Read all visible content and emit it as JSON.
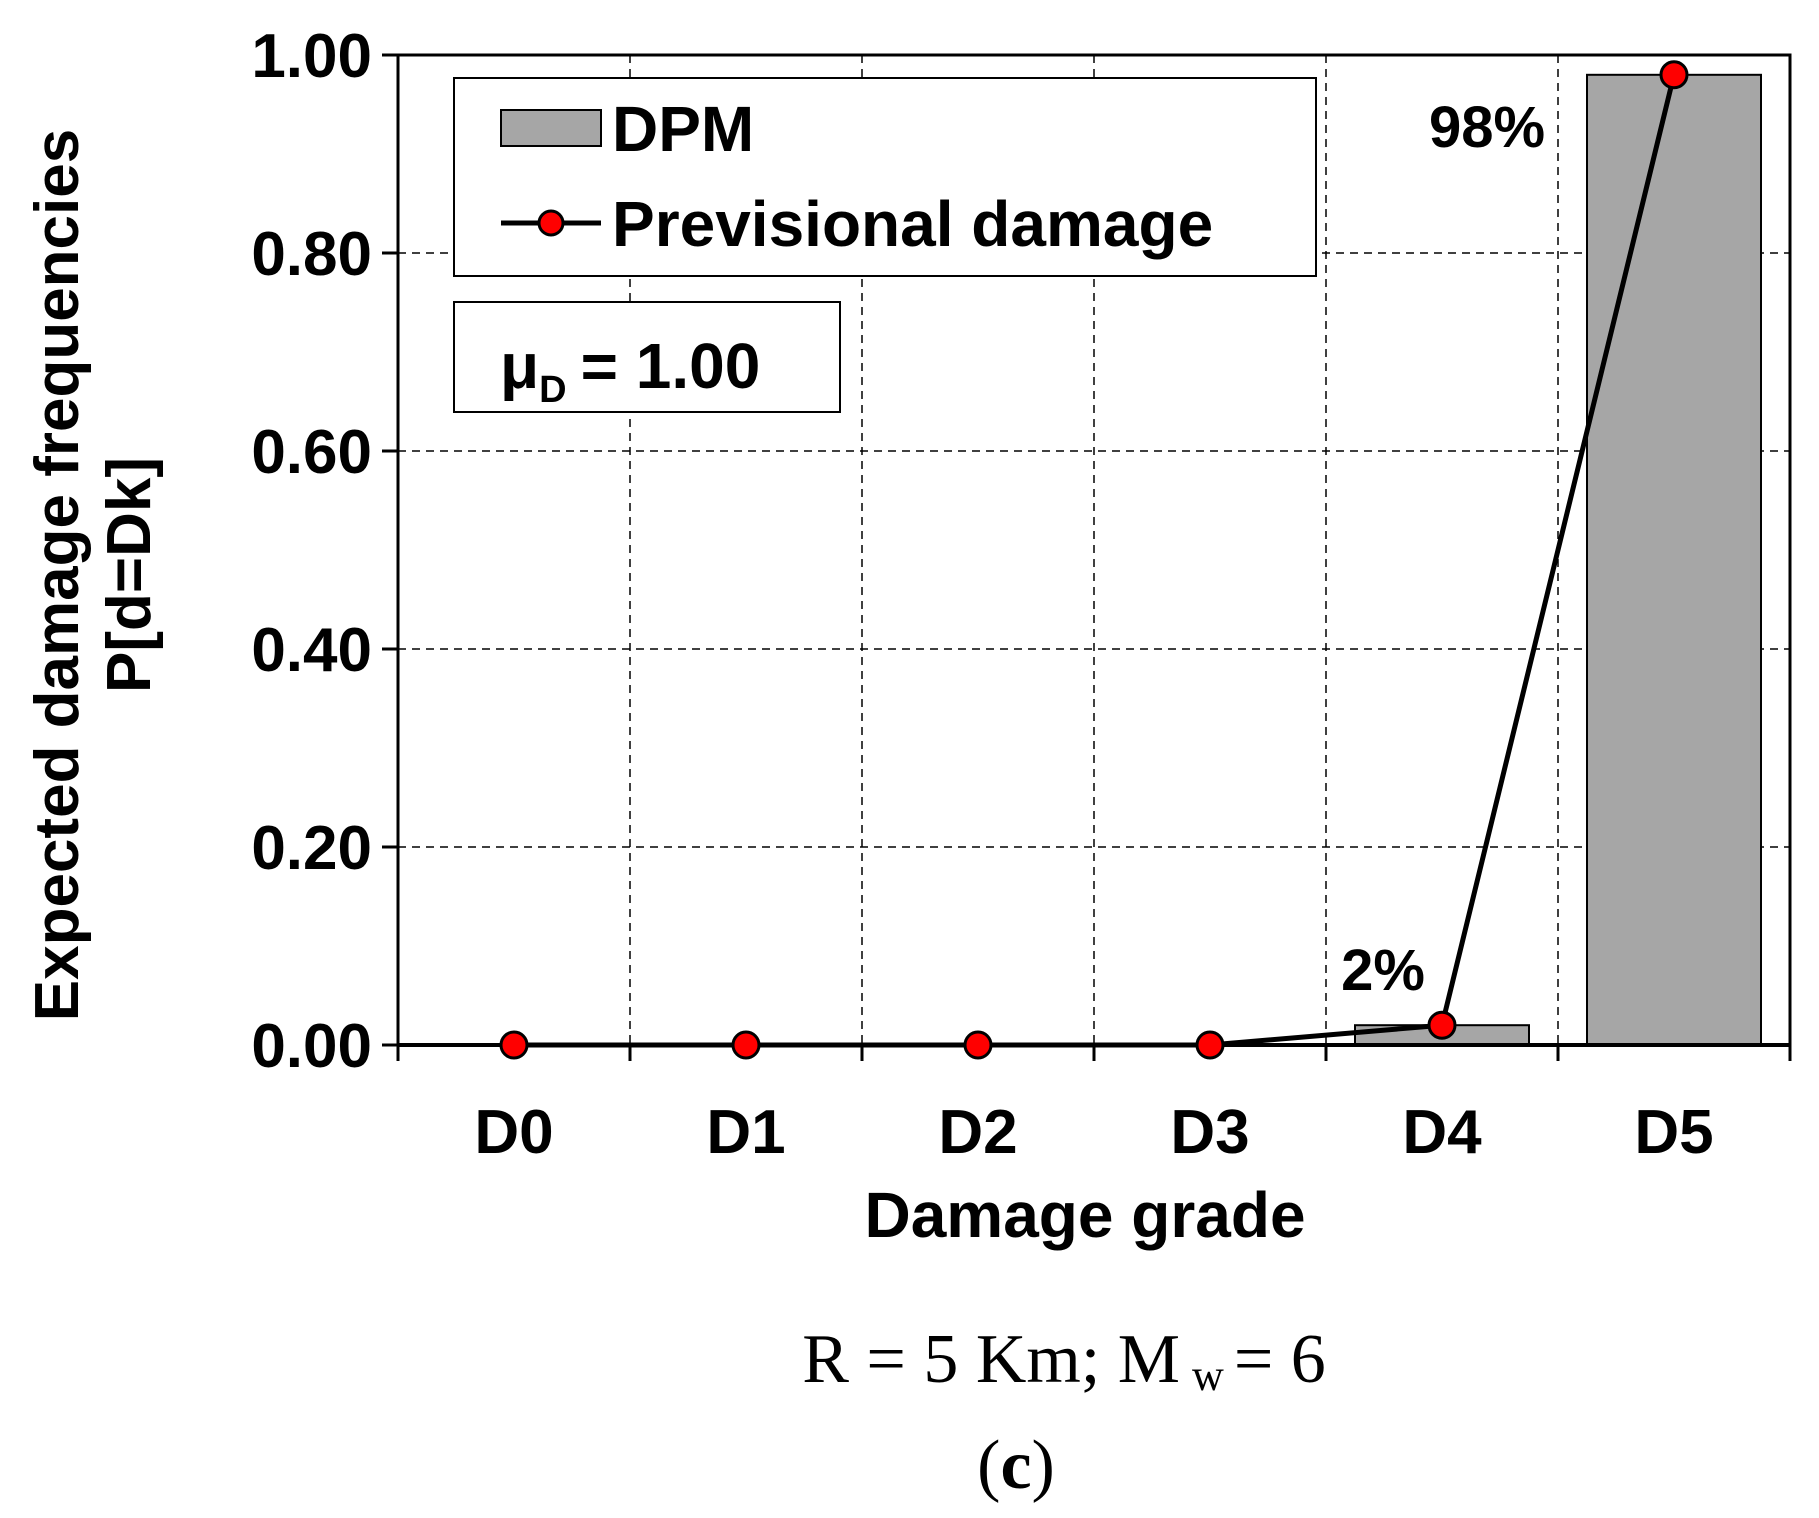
{
  "chart_data": {
    "type": "bar",
    "categories": [
      "D0",
      "D1",
      "D2",
      "D3",
      "D4",
      "D5"
    ],
    "series": [
      {
        "name": "DPM",
        "kind": "bar",
        "values": [
          0,
          0,
          0,
          0,
          0.02,
          0.98
        ],
        "color": "#a6a6a6"
      },
      {
        "name": "Previsional damage",
        "kind": "line",
        "values": [
          0,
          0,
          0,
          0,
          0.02,
          0.98
        ],
        "color": "#000000",
        "marker_color": "#ff0000"
      }
    ],
    "data_labels": [
      {
        "category": "D4",
        "text": "2%"
      },
      {
        "category": "D5",
        "text": "98%"
      }
    ],
    "ylabel_line1": "Expected damage frequencies",
    "ylabel_line2": "P[d=Dk]",
    "xlabel": "Damage grade",
    "ylim": [
      0,
      1
    ],
    "yticks": [
      "0.00",
      "0.20",
      "0.40",
      "0.60",
      "0.80",
      "1.00"
    ],
    "grid": true,
    "legend_position": "top-left",
    "mu": {
      "symbol": "μ",
      "subscript": "D",
      "value_text": "= 1.00"
    },
    "caption": {
      "line1_pre": "R = 5 Km; M",
      "line1_sub": "w",
      "line1_post": "= 6",
      "line2_pre": "(",
      "line2_bold": "c",
      "line2_post": ")"
    }
  }
}
